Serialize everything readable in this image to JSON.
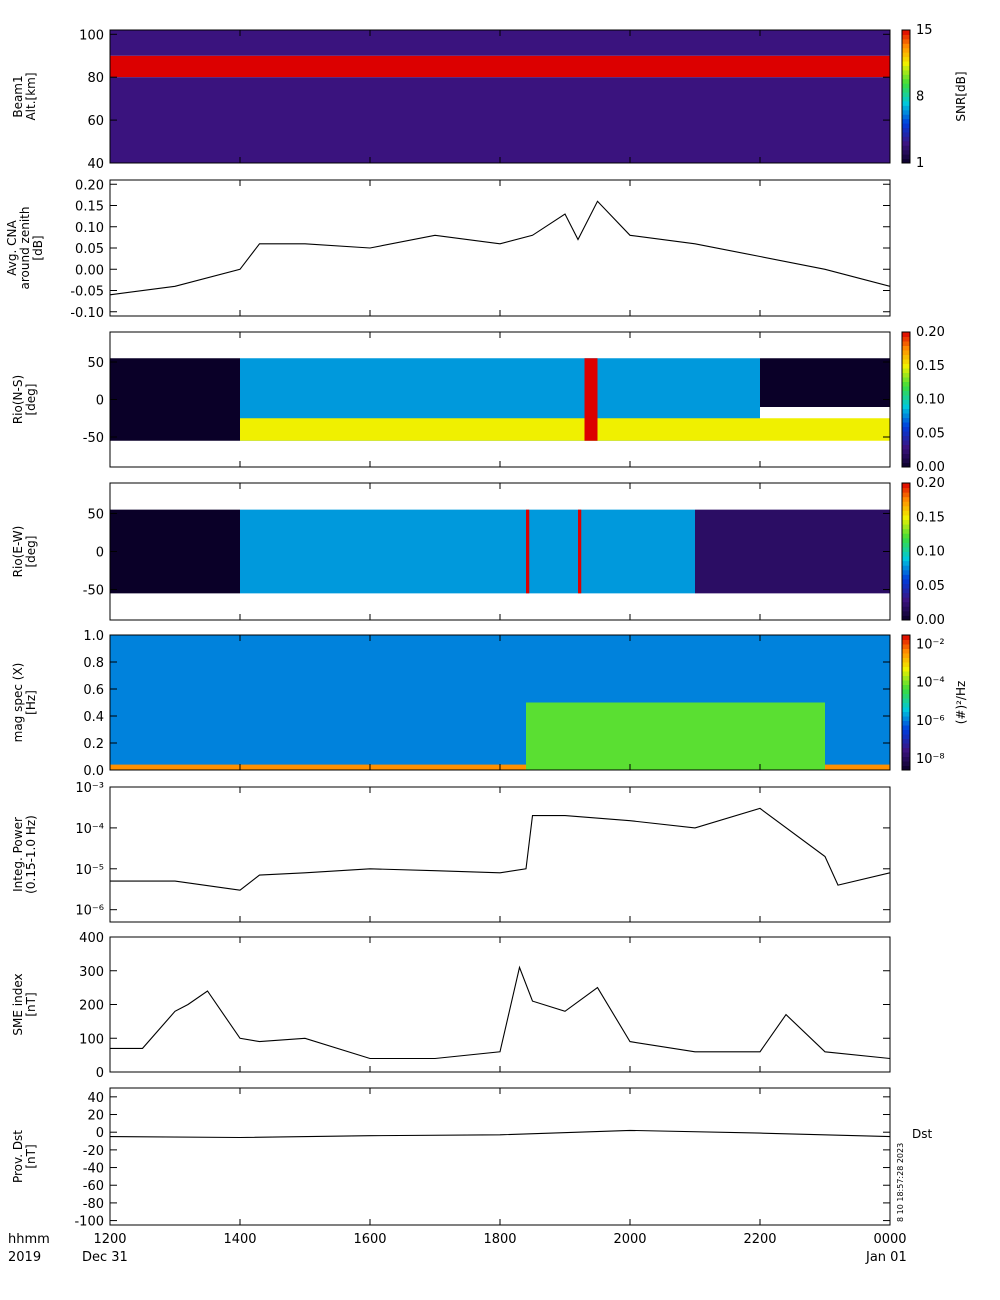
{
  "time_axis": {
    "range_hhmm": [
      1200,
      2400
    ],
    "tick_labels": [
      "1200",
      "1400",
      "1600",
      "1800",
      "2000",
      "2200",
      "0000"
    ],
    "corner_labels": [
      "hhmm",
      "2019"
    ],
    "date_labels": [
      "Dec 31",
      "Jan 01"
    ]
  },
  "side_labels": {
    "dst": "Dst",
    "timestamp": "8 10 18:57:28 2023"
  },
  "chart_data": [
    {
      "type": "heatmap",
      "ylabel": [
        "Beam1",
        "Alt.[km]"
      ],
      "ylim": [
        40,
        102
      ],
      "yticks": [
        "40",
        "60",
        "80",
        "100"
      ],
      "colorbar": {
        "label": "SNR[dB]",
        "range": [
          1,
          15
        ],
        "ticks": [
          "1",
          "8",
          "15"
        ]
      },
      "bands": [
        {
          "y": [
            80,
            90
          ],
          "time_hhmm": [
            1200,
            2400
          ],
          "value": 15,
          "note_color": "#cc0000"
        },
        {
          "y": [
            40,
            80
          ],
          "time_hhmm": [
            1200,
            2400
          ],
          "value": 3,
          "note_color": "#3a1a7a"
        },
        {
          "y": [
            90,
            102
          ],
          "time_hhmm": [
            1200,
            2400
          ],
          "value": 3,
          "note_color": "#3a1a7a"
        }
      ]
    },
    {
      "type": "line",
      "ylabel": [
        "Avg. CNA",
        "around zenith",
        "[dB]"
      ],
      "ylim": [
        -0.11,
        0.21
      ],
      "yticks": [
        "-0.10",
        "-0.05",
        "0.00",
        "0.05",
        "0.10",
        "0.15",
        "0.20"
      ],
      "yticks_values": [
        -0.1,
        -0.05,
        0.0,
        0.05,
        0.1,
        0.15,
        0.2
      ],
      "x": [
        1200,
        1300,
        1400,
        1430,
        1500,
        1600,
        1700,
        1800,
        1850,
        1900,
        1920,
        1950,
        2000,
        2100,
        2200,
        2300,
        2400
      ],
      "y": [
        -0.06,
        -0.04,
        0.0,
        0.06,
        0.06,
        0.05,
        0.08,
        0.06,
        0.08,
        0.13,
        0.07,
        0.16,
        0.08,
        0.06,
        0.03,
        0.0,
        -0.04
      ]
    },
    {
      "type": "heatmap",
      "ylabel": [
        "Rio(N-S)",
        "[deg]"
      ],
      "ylim": [
        -90,
        90
      ],
      "yticks": [
        "-50",
        "0",
        "50"
      ],
      "colorbar": {
        "label": "",
        "range": [
          0.0,
          0.2
        ],
        "ticks": [
          "0.00",
          "0.05",
          "0.10",
          "0.15",
          "0.20"
        ]
      },
      "bands": [
        {
          "y": [
            -55,
            55
          ],
          "time_hhmm": [
            1200,
            1400
          ],
          "value": 0.0
        },
        {
          "y": [
            -55,
            55
          ],
          "time_hhmm": [
            1400,
            2200
          ],
          "value": 0.08
        },
        {
          "y": [
            -55,
            -25
          ],
          "time_hhmm": [
            1400,
            2400
          ],
          "value": 0.15
        },
        {
          "y": [
            -55,
            55
          ],
          "time_hhmm": [
            1930,
            1950
          ],
          "value": 0.2
        },
        {
          "y": [
            -10,
            55
          ],
          "time_hhmm": [
            2200,
            2400
          ],
          "value": 0.0
        }
      ]
    },
    {
      "type": "heatmap",
      "ylabel": [
        "Rio(E-W)",
        "[deg]"
      ],
      "ylim": [
        -90,
        90
      ],
      "yticks": [
        "-50",
        "0",
        "50"
      ],
      "colorbar": {
        "label": "",
        "range": [
          0.0,
          0.2
        ],
        "ticks": [
          "0.00",
          "0.05",
          "0.10",
          "0.15",
          "0.20"
        ]
      },
      "bands": [
        {
          "y": [
            -55,
            55
          ],
          "time_hhmm": [
            1200,
            1400
          ],
          "value": 0.0
        },
        {
          "y": [
            -55,
            55
          ],
          "time_hhmm": [
            1400,
            2100
          ],
          "value": 0.08
        },
        {
          "y": [
            -55,
            55
          ],
          "time_hhmm": [
            1840,
            1845
          ],
          "value": 0.2
        },
        {
          "y": [
            -55,
            55
          ],
          "time_hhmm": [
            1920,
            1925
          ],
          "value": 0.2
        },
        {
          "y": [
            -55,
            55
          ],
          "time_hhmm": [
            2100,
            2400
          ],
          "value": 0.02
        }
      ]
    },
    {
      "type": "heatmap",
      "ylabel": [
        "mag spec (X)",
        "[Hz]"
      ],
      "ylim": [
        0.0,
        1.0
      ],
      "yticks": [
        "0.0",
        "0.2",
        "0.4",
        "0.6",
        "0.8",
        "1.0"
      ],
      "colorbar": {
        "label": "(#)²/Hz",
        "range": [
          -9,
          -1
        ],
        "ticks": [
          "10⁻⁸",
          "10⁻⁶",
          "10⁻⁴",
          "10⁻²"
        ]
      },
      "bands": [
        {
          "y": [
            0.0,
            1.0
          ],
          "time_hhmm": [
            1200,
            2400
          ],
          "value": -6
        },
        {
          "y": [
            0.0,
            0.04
          ],
          "time_hhmm": [
            1200,
            2400
          ],
          "value": -2
        },
        {
          "y": [
            0.0,
            0.5
          ],
          "time_hhmm": [
            1840,
            2300
          ],
          "value": -4
        }
      ]
    },
    {
      "type": "line",
      "ylabel": [
        "Integ. Power",
        "(0.15-1.0 Hz)"
      ],
      "ylim": [
        5e-07,
        0.001
      ],
      "log": true,
      "yticks": [
        "10⁻⁶",
        "10⁻⁵",
        "10⁻⁴",
        "10⁻³"
      ],
      "yticks_values": [
        1e-06,
        1e-05,
        0.0001,
        0.001
      ],
      "x": [
        1200,
        1300,
        1400,
        1430,
        1500,
        1600,
        1700,
        1800,
        1840,
        1850,
        1900,
        2000,
        2100,
        2200,
        2300,
        2320,
        2400
      ],
      "y": [
        5e-06,
        5e-06,
        3e-06,
        7e-06,
        8e-06,
        1e-05,
        9e-06,
        8e-06,
        1e-05,
        0.0002,
        0.0002,
        0.00015,
        0.0001,
        0.0003,
        2e-05,
        4e-06,
        8e-06
      ]
    },
    {
      "type": "line",
      "ylabel": [
        "SME index",
        "[nT]"
      ],
      "ylim": [
        0,
        400
      ],
      "yticks": [
        "0",
        "100",
        "200",
        "300",
        "400"
      ],
      "yticks_values": [
        0,
        100,
        200,
        300,
        400
      ],
      "x": [
        1200,
        1250,
        1300,
        1320,
        1350,
        1400,
        1430,
        1500,
        1600,
        1700,
        1800,
        1830,
        1850,
        1900,
        1950,
        2000,
        2100,
        2200,
        2240,
        2300,
        2400
      ],
      "y": [
        70,
        70,
        180,
        200,
        240,
        100,
        90,
        100,
        40,
        40,
        60,
        310,
        210,
        180,
        250,
        90,
        60,
        60,
        170,
        60,
        40
      ]
    },
    {
      "type": "line",
      "ylabel": [
        "Prov. Dst",
        "[nT]"
      ],
      "ylim": [
        -105,
        50
      ],
      "yticks": [
        "-100",
        "-80",
        "-60",
        "-40",
        "-20",
        "0",
        "20",
        "40"
      ],
      "yticks_values": [
        -100,
        -80,
        -60,
        -40,
        -20,
        0,
        20,
        40
      ],
      "x": [
        1200,
        1400,
        1600,
        1800,
        2000,
        2200,
        2400
      ],
      "y": [
        -5,
        -6,
        -4,
        -3,
        2,
        -1,
        -5
      ]
    }
  ]
}
